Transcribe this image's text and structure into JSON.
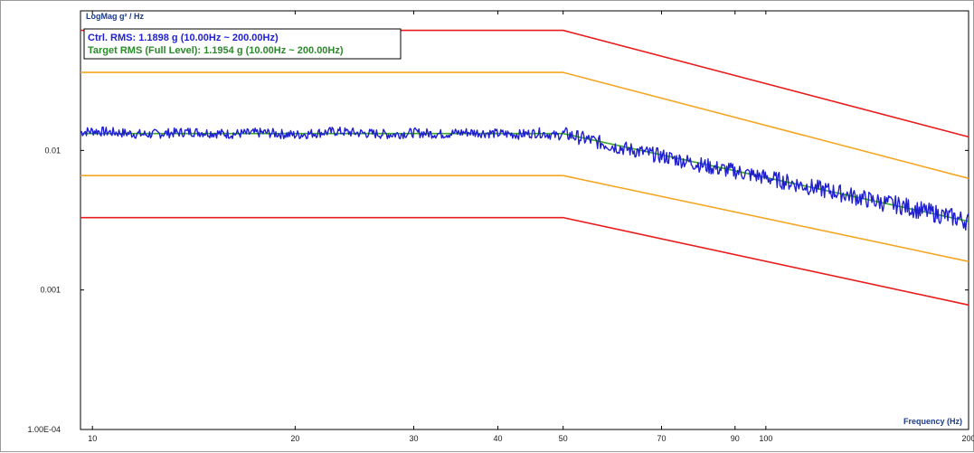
{
  "chart_data": {
    "type": "line",
    "ylabel": "LogMag g² / Hz",
    "xlabel": "Frequency (Hz)",
    "x_scale": "log",
    "y_scale": "log",
    "xlim": [
      9.6,
      200
    ],
    "ylim": [
      0.0001,
      0.1
    ],
    "x_ticks": [
      {
        "value": 10,
        "label": "10"
      },
      {
        "value": 20,
        "label": "20"
      },
      {
        "value": 30,
        "label": "30"
      },
      {
        "value": 40,
        "label": "40"
      },
      {
        "value": 50,
        "label": "50"
      },
      {
        "value": 70,
        "label": "70"
      },
      {
        "value": 90,
        "label": "90"
      },
      {
        "value": 100,
        "label": "100"
      },
      {
        "value": 200,
        "label": "200"
      }
    ],
    "y_ticks": [
      {
        "value": 0.01,
        "label": "0.01"
      },
      {
        "value": 0.001,
        "label": "0.001"
      },
      {
        "value": 0.0001,
        "label": "1.00E-04"
      }
    ],
    "legend": {
      "placement": "top-left",
      "entries": [
        {
          "text": "Ctrl. RMS: 1.1898 g (10.00Hz ~ 200.00Hz)",
          "color": "#1f1fd0"
        },
        {
          "text": "Target RMS (Full Level): 1.1954 g (10.00Hz ~ 200.00Hz)",
          "color": "#2a8a2a"
        }
      ]
    },
    "series": [
      {
        "role": "upper-abort",
        "color": "#e81c1c",
        "x": [
          9.6,
          50,
          200
        ],
        "y": [
          0.0725,
          0.0725,
          0.0125
        ]
      },
      {
        "role": "upper-alarm",
        "color": "#f5a623",
        "x": [
          9.6,
          50,
          200
        ],
        "y": [
          0.0362,
          0.0362,
          0.0063
        ]
      },
      {
        "role": "profile",
        "color": "#3aa82a",
        "x": [
          9.6,
          50,
          200
        ],
        "y": [
          0.0132,
          0.0132,
          0.0031
        ]
      },
      {
        "role": "lower-alarm",
        "color": "#f5a623",
        "x": [
          9.6,
          50,
          200
        ],
        "y": [
          0.0066,
          0.0066,
          0.0016
        ]
      },
      {
        "role": "lower-abort",
        "color": "#e81c1c",
        "x": [
          9.6,
          50,
          200
        ],
        "y": [
          0.0033,
          0.0033,
          0.00078
        ]
      },
      {
        "role": "control",
        "color": "#1f1fd0",
        "x": [
          9.6,
          10,
          12,
          14,
          16,
          18,
          20,
          23,
          25,
          28,
          30,
          33,
          36,
          40,
          43,
          46,
          49,
          50,
          55,
          60,
          65,
          70,
          75,
          80,
          85,
          90,
          95,
          100,
          110,
          120,
          130,
          140,
          150,
          160,
          170,
          180,
          190,
          200
        ],
        "y": [
          0.0135,
          0.0138,
          0.013,
          0.0136,
          0.0131,
          0.0134,
          0.0129,
          0.0137,
          0.0133,
          0.013,
          0.0134,
          0.0131,
          0.0135,
          0.0132,
          0.013,
          0.0134,
          0.0127,
          0.0132,
          0.0118,
          0.0106,
          0.0098,
          0.0091,
          0.0085,
          0.0079,
          0.0074,
          0.0071,
          0.0067,
          0.0064,
          0.0058,
          0.0053,
          0.0049,
          0.0045,
          0.0042,
          0.004,
          0.0037,
          0.0035,
          0.0033,
          0.0031
        ]
      }
    ]
  }
}
